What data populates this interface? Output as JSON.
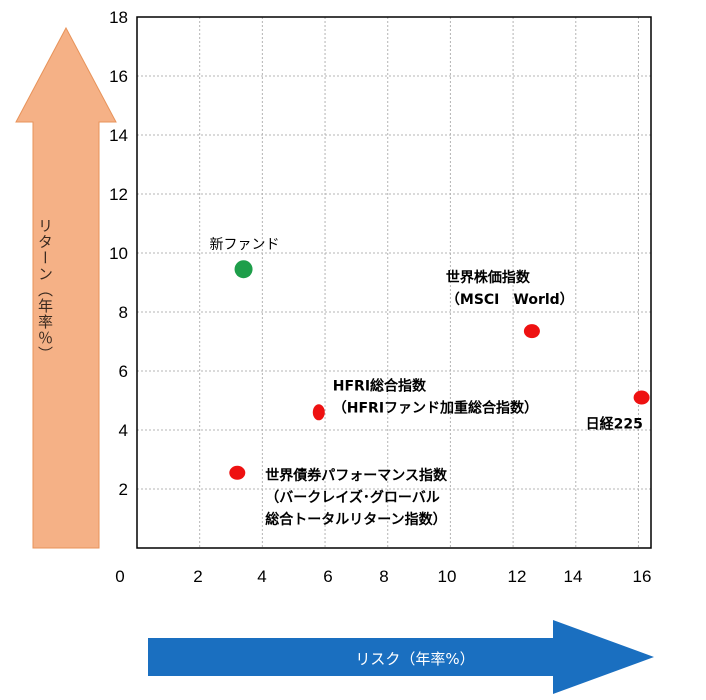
{
  "chart_data": {
    "type": "scatter",
    "xlabel": "リスク（年率%）",
    "ylabel": "リターン（年率％）",
    "title": "",
    "x_ticks": [
      "0",
      "2",
      "4",
      "6",
      "8",
      "10",
      "12",
      "14",
      "16"
    ],
    "y_ticks": [
      "2",
      "4",
      "6",
      "8",
      "10",
      "12",
      "14",
      "16",
      "18"
    ],
    "xlim": [
      0,
      16.4
    ],
    "ylim": [
      0,
      18
    ],
    "grid": true,
    "points": [
      {
        "name": "新ファンド",
        "lines": [
          "新ファンド"
        ],
        "x": 3.4,
        "y": 9.45,
        "color": "#1e9e4a",
        "rx": 9,
        "ry": 9,
        "label_anchor": "above",
        "bold": false
      },
      {
        "name": "世界株価指数",
        "lines": [
          "世界株価指数",
          "（MSCI　World）"
        ],
        "x": 12.6,
        "y": 7.35,
        "color": "#ee1111",
        "rx": 8,
        "ry": 7,
        "label_anchor": "above",
        "bold": true
      },
      {
        "name": "HFRI総合指数",
        "lines": [
          "HFRI総合指数",
          "（HFRIファンド加重総合指数）"
        ],
        "x": 5.8,
        "y": 4.6,
        "color": "#ee1111",
        "rx": 6,
        "ry": 8,
        "label_anchor": "right-up",
        "bold": true
      },
      {
        "name": "日経225",
        "lines": [
          "日経225"
        ],
        "x": 16.1,
        "y": 5.1,
        "color": "#ee1111",
        "rx": 8,
        "ry": 7,
        "label_anchor": "below-left",
        "bold": true
      },
      {
        "name": "世界債券パフォーマンス指数",
        "lines": [
          "世界債券パフォーマンス指数",
          "（バークレイズ･グローバル",
          "総合トータルリターン指数）"
        ],
        "x": 3.2,
        "y": 2.55,
        "color": "#ee1111",
        "rx": 8,
        "ry": 7,
        "label_anchor": "right",
        "bold": true
      }
    ]
  },
  "colors": {
    "y_arrow": "#f5b186",
    "y_arrow_stroke": "#e8935a",
    "y_arrow_text": "#3a2a20",
    "x_arrow": "#1a6fc0",
    "x_arrow_text": "#ffffff",
    "grid": "#b4b4b4",
    "frame": "#000000"
  }
}
